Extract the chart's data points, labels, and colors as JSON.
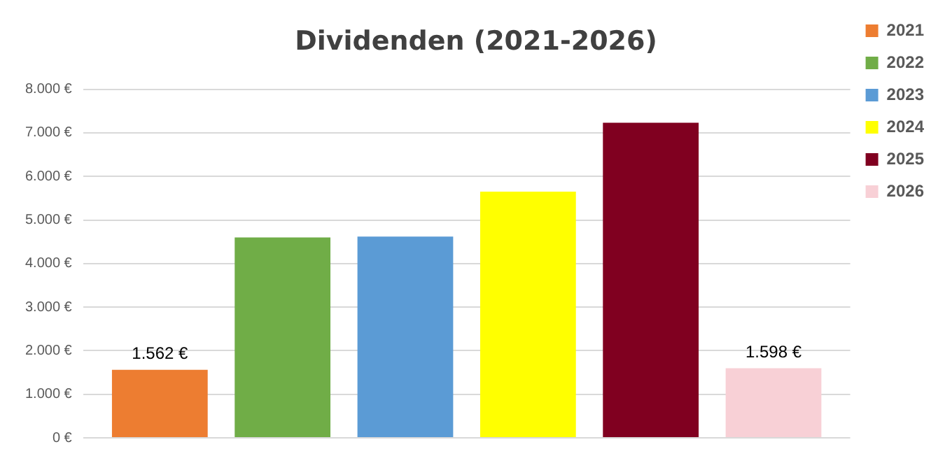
{
  "chart_data": {
    "type": "bar",
    "title": "Dividenden (2021-2026)",
    "categories": [
      null
    ],
    "series": [
      {
        "name": "2021",
        "color": "#ed7d31",
        "values": [
          1562
        ],
        "value_labels": [
          "1.562 €"
        ]
      },
      {
        "name": "2022",
        "color": "#70ad47",
        "values": [
          4600
        ],
        "value_labels": [
          null
        ]
      },
      {
        "name": "2023",
        "color": "#5b9bd5",
        "values": [
          4620
        ],
        "value_labels": [
          null
        ]
      },
      {
        "name": "2024",
        "color": "#ffff00",
        "values": [
          5650
        ],
        "value_labels": [
          null
        ]
      },
      {
        "name": "2025",
        "color": "#800020",
        "values": [
          7230
        ],
        "value_labels": [
          null
        ]
      },
      {
        "name": "2026",
        "color": "#f8d0d6",
        "values": [
          1598
        ],
        "value_labels": [
          "1.598 €"
        ]
      }
    ],
    "ylim": [
      0,
      8000
    ],
    "yticks": [
      {
        "value": 0,
        "label": "0 €"
      },
      {
        "value": 1000,
        "label": "1.000 €"
      },
      {
        "value": 2000,
        "label": "2.000 €"
      },
      {
        "value": 3000,
        "label": "3.000 €"
      },
      {
        "value": 4000,
        "label": "4.000 €"
      },
      {
        "value": 5000,
        "label": "5.000 €"
      },
      {
        "value": 6000,
        "label": "6.000 €"
      },
      {
        "value": 7000,
        "label": "7.000 €"
      },
      {
        "value": 8000,
        "label": "8.000 €"
      }
    ],
    "grid": "y",
    "legend": "right"
  }
}
